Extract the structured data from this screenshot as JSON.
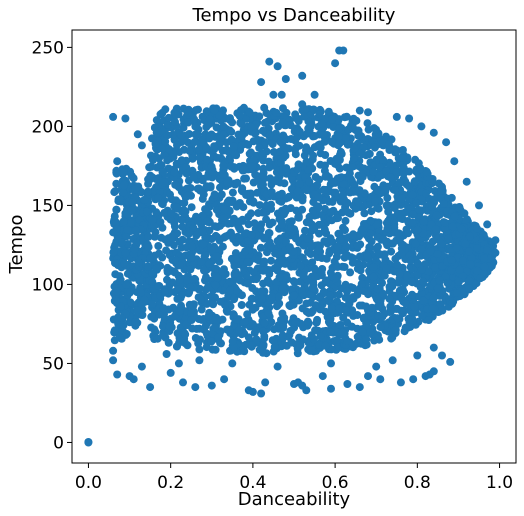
{
  "chart_data": {
    "type": "scatter",
    "title": "Tempo vs Danceability",
    "xlabel": "Danceability",
    "ylabel": "Tempo",
    "xlim": [
      -0.04,
      1.04
    ],
    "ylim": [
      -13,
      261
    ],
    "xticks": [
      0.0,
      0.2,
      0.4,
      0.6,
      0.8,
      1.0
    ],
    "xtick_labels": [
      "0.0",
      "0.2",
      "0.4",
      "0.6",
      "0.8",
      "1.0"
    ],
    "yticks": [
      0,
      50,
      100,
      150,
      200,
      250
    ],
    "ytick_labels": [
      "0",
      "50",
      "100",
      "150",
      "200",
      "250"
    ],
    "grid": false,
    "legend": "none",
    "marker_color": "#1f77b4",
    "density_envelope": [
      {
        "x": 0.06,
        "ymin": 62,
        "ymax": 180
      },
      {
        "x": 0.08,
        "ymin": 65,
        "ymax": 175
      },
      {
        "x": 0.1,
        "ymin": 70,
        "ymax": 172
      },
      {
        "x": 0.12,
        "ymin": 75,
        "ymax": 165
      },
      {
        "x": 0.14,
        "ymin": 85,
        "ymax": 155
      },
      {
        "x": 0.16,
        "ymin": 65,
        "ymax": 210
      },
      {
        "x": 0.2,
        "ymin": 60,
        "ymax": 212
      },
      {
        "x": 0.3,
        "ymin": 58,
        "ymax": 212
      },
      {
        "x": 0.4,
        "ymin": 56,
        "ymax": 212
      },
      {
        "x": 0.5,
        "ymin": 56,
        "ymax": 212
      },
      {
        "x": 0.6,
        "ymin": 58,
        "ymax": 210
      },
      {
        "x": 0.7,
        "ymin": 62,
        "ymax": 200
      },
      {
        "x": 0.8,
        "ymin": 72,
        "ymax": 178
      },
      {
        "x": 0.85,
        "ymin": 80,
        "ymax": 165
      },
      {
        "x": 0.9,
        "ymin": 90,
        "ymax": 150
      },
      {
        "x": 0.95,
        "ymin": 102,
        "ymax": 135
      },
      {
        "x": 0.985,
        "ymin": 112,
        "ymax": 125
      }
    ],
    "points": [
      [
        0.0,
        0
      ],
      [
        0.0,
        0.3
      ],
      [
        0.42,
        228
      ],
      [
        0.61,
        248
      ],
      [
        0.62,
        248
      ],
      [
        0.44,
        241
      ],
      [
        0.46,
        238
      ],
      [
        0.52,
        232
      ],
      [
        0.6,
        240
      ],
      [
        0.48,
        230
      ],
      [
        0.45,
        220
      ],
      [
        0.47,
        220
      ],
      [
        0.55,
        220
      ],
      [
        0.52,
        214
      ],
      [
        0.66,
        210
      ],
      [
        0.68,
        209
      ],
      [
        0.75,
        206
      ],
      [
        0.78,
        205
      ],
      [
        0.81,
        200
      ],
      [
        0.84,
        196
      ],
      [
        0.87,
        190
      ],
      [
        0.89,
        178
      ],
      [
        0.92,
        165
      ],
      [
        0.95,
        150
      ],
      [
        0.97,
        138
      ],
      [
        0.99,
        128
      ],
      [
        0.99,
        120
      ],
      [
        0.06,
        206
      ],
      [
        0.09,
        205
      ],
      [
        0.12,
        195
      ],
      [
        0.13,
        188
      ],
      [
        0.07,
        178
      ],
      [
        0.06,
        58
      ],
      [
        0.06,
        52
      ],
      [
        0.07,
        43
      ],
      [
        0.1,
        42
      ],
      [
        0.11,
        40
      ],
      [
        0.15,
        35
      ],
      [
        0.13,
        48
      ],
      [
        0.2,
        44
      ],
      [
        0.23,
        38
      ],
      [
        0.26,
        35
      ],
      [
        0.3,
        36
      ],
      [
        0.33,
        40
      ],
      [
        0.4,
        32
      ],
      [
        0.42,
        31
      ],
      [
        0.39,
        33
      ],
      [
        0.43,
        38
      ],
      [
        0.5,
        37
      ],
      [
        0.51,
        38
      ],
      [
        0.52,
        36
      ],
      [
        0.53,
        33
      ],
      [
        0.57,
        42
      ],
      [
        0.59,
        34
      ],
      [
        0.63,
        37
      ],
      [
        0.66,
        35
      ],
      [
        0.68,
        42
      ],
      [
        0.71,
        40
      ],
      [
        0.76,
        38
      ],
      [
        0.79,
        40
      ],
      [
        0.82,
        42
      ],
      [
        0.84,
        45
      ],
      [
        0.83,
        43
      ],
      [
        0.88,
        51
      ],
      [
        0.86,
        55
      ],
      [
        0.84,
        60
      ],
      [
        0.8,
        55
      ],
      [
        0.19,
        56
      ],
      [
        0.22,
        50
      ],
      [
        0.27,
        52
      ],
      [
        0.35,
        50
      ],
      [
        0.46,
        48
      ],
      [
        0.59,
        50
      ],
      [
        0.7,
        48
      ],
      [
        0.74,
        52
      ]
    ]
  }
}
